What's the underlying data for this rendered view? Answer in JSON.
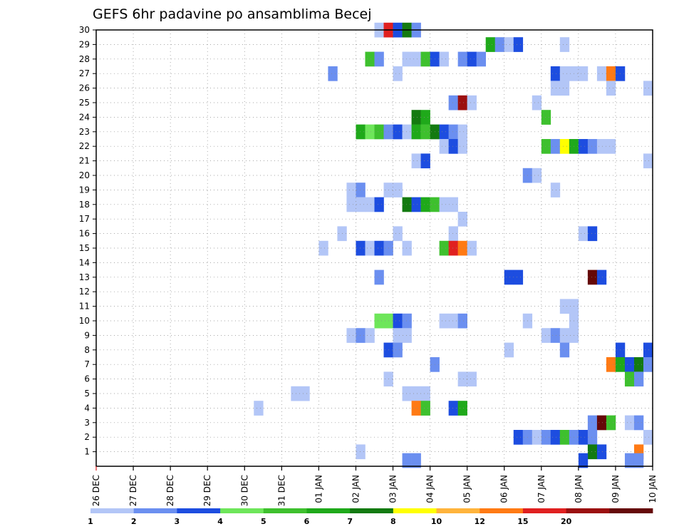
{
  "chart_data": {
    "type": "heatmap",
    "title": "GEFS 6hr padavine po ansamblima Becej",
    "xlabel": "",
    "ylabel": "",
    "y_ticks": [
      "1",
      "2",
      "3",
      "4",
      "5",
      "6",
      "7",
      "8",
      "9",
      "10",
      "11",
      "12",
      "13",
      "14",
      "15",
      "16",
      "17",
      "18",
      "19",
      "20",
      "21",
      "22",
      "23",
      "24",
      "25",
      "26",
      "27",
      "28",
      "29",
      "30"
    ],
    "x_ticks": [
      "26 DEC",
      "27 DEC",
      "28 DEC",
      "29 DEC",
      "30 DEC",
      "31 DEC",
      "01 JAN",
      "02 JAN",
      "03 JAN",
      "04 JAN",
      "05 JAN",
      "06 JAN",
      "07 JAN",
      "08 JAN",
      "09 JAN",
      "10 JAN"
    ],
    "x_unit": "6-hour steps from 26 DEC 00Z",
    "xlim": [
      0,
      60
    ],
    "ylim": [
      0,
      30
    ],
    "grid": true,
    "legend_placement": "bottom",
    "legend": {
      "labels": [
        "1",
        "2",
        "3",
        "4",
        "5",
        "6",
        "7",
        "8",
        "10",
        "12",
        "15",
        "20"
      ],
      "colors": [
        "#b3c6f7",
        "#6b8ff0",
        "#1d4de0",
        "#6ee65a",
        "#3ec02e",
        "#1fa91a",
        "#137a10",
        "#ffff00",
        "#ffb43c",
        "#ff7a14",
        "#e02020",
        "#9b0f0f",
        "#650808"
      ]
    },
    "cells": [
      {
        "m": 30,
        "t": 30.5,
        "c": 0
      },
      {
        "m": 30,
        "t": 31.5,
        "c": 10
      },
      {
        "m": 30,
        "t": 32.5,
        "c": 2
      },
      {
        "m": 30,
        "t": 33.5,
        "c": 6
      },
      {
        "m": 30,
        "t": 34.5,
        "c": 1
      },
      {
        "m": 29,
        "t": 42.5,
        "c": 5
      },
      {
        "m": 29,
        "t": 43.5,
        "c": 1
      },
      {
        "m": 29,
        "t": 44.5,
        "c": 0
      },
      {
        "m": 29,
        "t": 45.5,
        "c": 2
      },
      {
        "m": 29,
        "t": 50.5,
        "c": 0
      },
      {
        "m": 28,
        "t": 29.5,
        "c": 4
      },
      {
        "m": 28,
        "t": 30.5,
        "c": 1
      },
      {
        "m": 28,
        "t": 33.5,
        "c": 0
      },
      {
        "m": 28,
        "t": 34.5,
        "c": 0
      },
      {
        "m": 28,
        "t": 35.5,
        "c": 4
      },
      {
        "m": 28,
        "t": 36.5,
        "c": 2
      },
      {
        "m": 28,
        "t": 37.5,
        "c": 0
      },
      {
        "m": 28,
        "t": 39.5,
        "c": 1
      },
      {
        "m": 28,
        "t": 40.5,
        "c": 2
      },
      {
        "m": 28,
        "t": 41.5,
        "c": 1
      },
      {
        "m": 27,
        "t": 25.5,
        "c": 1
      },
      {
        "m": 27,
        "t": 32.5,
        "c": 0
      },
      {
        "m": 27,
        "t": 49.5,
        "c": 2
      },
      {
        "m": 27,
        "t": 50.5,
        "c": 0
      },
      {
        "m": 27,
        "t": 51.5,
        "c": 0
      },
      {
        "m": 27,
        "t": 52.5,
        "c": 0
      },
      {
        "m": 27,
        "t": 54.5,
        "c": 0
      },
      {
        "m": 27,
        "t": 55.5,
        "c": 9
      },
      {
        "m": 27,
        "t": 56.5,
        "c": 2
      },
      {
        "m": 26,
        "t": 49.5,
        "c": 0
      },
      {
        "m": 26,
        "t": 50.5,
        "c": 0
      },
      {
        "m": 26,
        "t": 55.5,
        "c": 0
      },
      {
        "m": 26,
        "t": 59.5,
        "c": 0
      },
      {
        "m": 25,
        "t": 38.5,
        "c": 1
      },
      {
        "m": 25,
        "t": 39.5,
        "c": 11
      },
      {
        "m": 25,
        "t": 40.5,
        "c": 0
      },
      {
        "m": 25,
        "t": 47.5,
        "c": 0
      },
      {
        "m": 24,
        "t": 34.5,
        "c": 6
      },
      {
        "m": 24,
        "t": 35.5,
        "c": 5
      },
      {
        "m": 24,
        "t": 48.5,
        "c": 4
      },
      {
        "m": 23,
        "t": 28.5,
        "c": 5
      },
      {
        "m": 23,
        "t": 29.5,
        "c": 3
      },
      {
        "m": 23,
        "t": 30.5,
        "c": 4
      },
      {
        "m": 23,
        "t": 31.5,
        "c": 1
      },
      {
        "m": 23,
        "t": 32.5,
        "c": 2
      },
      {
        "m": 23,
        "t": 33.5,
        "c": 0
      },
      {
        "m": 23,
        "t": 34.5,
        "c": 5
      },
      {
        "m": 23,
        "t": 35.5,
        "c": 4
      },
      {
        "m": 23,
        "t": 36.5,
        "c": 6
      },
      {
        "m": 23,
        "t": 37.5,
        "c": 2
      },
      {
        "m": 23,
        "t": 38.5,
        "c": 1
      },
      {
        "m": 23,
        "t": 39.5,
        "c": 0
      },
      {
        "m": 22,
        "t": 37.5,
        "c": 0
      },
      {
        "m": 22,
        "t": 38.5,
        "c": 2
      },
      {
        "m": 22,
        "t": 39.5,
        "c": 0
      },
      {
        "m": 22,
        "t": 48.5,
        "c": 4
      },
      {
        "m": 22,
        "t": 49.5,
        "c": 1
      },
      {
        "m": 22,
        "t": 50.5,
        "c": 7
      },
      {
        "m": 22,
        "t": 51.5,
        "c": 5
      },
      {
        "m": 22,
        "t": 52.5,
        "c": 2
      },
      {
        "m": 22,
        "t": 53.5,
        "c": 1
      },
      {
        "m": 22,
        "t": 54.5,
        "c": 0
      },
      {
        "m": 22,
        "t": 55.5,
        "c": 0
      },
      {
        "m": 21,
        "t": 34.5,
        "c": 0
      },
      {
        "m": 21,
        "t": 35.5,
        "c": 2
      },
      {
        "m": 21,
        "t": 59.5,
        "c": 0
      },
      {
        "m": 20,
        "t": 46.5,
        "c": 1
      },
      {
        "m": 20,
        "t": 47.5,
        "c": 0
      },
      {
        "m": 19,
        "t": 27.5,
        "c": 0
      },
      {
        "m": 19,
        "t": 28.5,
        "c": 1
      },
      {
        "m": 19,
        "t": 31.5,
        "c": 0
      },
      {
        "m": 19,
        "t": 32.5,
        "c": 0
      },
      {
        "m": 19,
        "t": 49.5,
        "c": 0
      },
      {
        "m": 18,
        "t": 27.5,
        "c": 0
      },
      {
        "m": 18,
        "t": 28.5,
        "c": 0
      },
      {
        "m": 18,
        "t": 29.5,
        "c": 0
      },
      {
        "m": 18,
        "t": 30.5,
        "c": 2
      },
      {
        "m": 18,
        "t": 33.5,
        "c": 6
      },
      {
        "m": 18,
        "t": 34.5,
        "c": 2
      },
      {
        "m": 18,
        "t": 35.5,
        "c": 5
      },
      {
        "m": 18,
        "t": 36.5,
        "c": 4
      },
      {
        "m": 18,
        "t": 37.5,
        "c": 0
      },
      {
        "m": 18,
        "t": 38.5,
        "c": 0
      },
      {
        "m": 17,
        "t": 39.5,
        "c": 0
      },
      {
        "m": 16,
        "t": 26.5,
        "c": 0
      },
      {
        "m": 16,
        "t": 32.5,
        "c": 0
      },
      {
        "m": 16,
        "t": 38.5,
        "c": 0
      },
      {
        "m": 16,
        "t": 52.5,
        "c": 0
      },
      {
        "m": 16,
        "t": 53.5,
        "c": 2
      },
      {
        "m": 15,
        "t": 24.5,
        "c": 0
      },
      {
        "m": 15,
        "t": 28.5,
        "c": 2
      },
      {
        "m": 15,
        "t": 29.5,
        "c": 0
      },
      {
        "m": 15,
        "t": 30.5,
        "c": 2
      },
      {
        "m": 15,
        "t": 31.5,
        "c": 1
      },
      {
        "m": 15,
        "t": 33.5,
        "c": 0
      },
      {
        "m": 15,
        "t": 37.5,
        "c": 4
      },
      {
        "m": 15,
        "t": 38.5,
        "c": 10
      },
      {
        "m": 15,
        "t": 39.5,
        "c": 9
      },
      {
        "m": 15,
        "t": 40.5,
        "c": 0
      },
      {
        "m": 13,
        "t": 30.5,
        "c": 1
      },
      {
        "m": 13,
        "t": 44.5,
        "c": 2
      },
      {
        "m": 13,
        "t": 45.5,
        "c": 2
      },
      {
        "m": 13,
        "t": 53.5,
        "c": 12
      },
      {
        "m": 13,
        "t": 54.5,
        "c": 2
      },
      {
        "m": 11,
        "t": 50.5,
        "c": 0
      },
      {
        "m": 11,
        "t": 51.5,
        "c": 0
      },
      {
        "m": 10,
        "t": 30.5,
        "c": 3
      },
      {
        "m": 10,
        "t": 31.5,
        "c": 3
      },
      {
        "m": 10,
        "t": 32.5,
        "c": 2
      },
      {
        "m": 10,
        "t": 33.5,
        "c": 1
      },
      {
        "m": 10,
        "t": 37.5,
        "c": 0
      },
      {
        "m": 10,
        "t": 38.5,
        "c": 0
      },
      {
        "m": 10,
        "t": 39.5,
        "c": 1
      },
      {
        "m": 10,
        "t": 46.5,
        "c": 0
      },
      {
        "m": 10,
        "t": 51.5,
        "c": 0
      },
      {
        "m": 9,
        "t": 27.5,
        "c": 0
      },
      {
        "m": 9,
        "t": 28.5,
        "c": 1
      },
      {
        "m": 9,
        "t": 29.5,
        "c": 0
      },
      {
        "m": 9,
        "t": 32.5,
        "c": 0
      },
      {
        "m": 9,
        "t": 33.5,
        "c": 0
      },
      {
        "m": 9,
        "t": 48.5,
        "c": 0
      },
      {
        "m": 9,
        "t": 49.5,
        "c": 1
      },
      {
        "m": 9,
        "t": 50.5,
        "c": 0
      },
      {
        "m": 9,
        "t": 51.5,
        "c": 0
      },
      {
        "m": 8,
        "t": 31.5,
        "c": 2
      },
      {
        "m": 8,
        "t": 32.5,
        "c": 1
      },
      {
        "m": 8,
        "t": 44.5,
        "c": 0
      },
      {
        "m": 8,
        "t": 50.5,
        "c": 1
      },
      {
        "m": 8,
        "t": 56.5,
        "c": 2
      },
      {
        "m": 8,
        "t": 59.5,
        "c": 2
      },
      {
        "m": 7,
        "t": 36.5,
        "c": 1
      },
      {
        "m": 7,
        "t": 55.5,
        "c": 9
      },
      {
        "m": 7,
        "t": 56.5,
        "c": 5
      },
      {
        "m": 7,
        "t": 57.5,
        "c": 2
      },
      {
        "m": 7,
        "t": 58.5,
        "c": 6
      },
      {
        "m": 7,
        "t": 59.5,
        "c": 1
      },
      {
        "m": 6,
        "t": 31.5,
        "c": 0
      },
      {
        "m": 6,
        "t": 39.5,
        "c": 0
      },
      {
        "m": 6,
        "t": 40.5,
        "c": 0
      },
      {
        "m": 6,
        "t": 57.5,
        "c": 4
      },
      {
        "m": 6,
        "t": 58.5,
        "c": 1
      },
      {
        "m": 5,
        "t": 21.5,
        "c": 0
      },
      {
        "m": 5,
        "t": 22.5,
        "c": 0
      },
      {
        "m": 5,
        "t": 33.5,
        "c": 0
      },
      {
        "m": 5,
        "t": 34.5,
        "c": 0
      },
      {
        "m": 5,
        "t": 35.5,
        "c": 0
      },
      {
        "m": 4,
        "t": 17.5,
        "c": 0
      },
      {
        "m": 4,
        "t": 34.5,
        "c": 9
      },
      {
        "m": 4,
        "t": 35.5,
        "c": 4
      },
      {
        "m": 4,
        "t": 38.5,
        "c": 2
      },
      {
        "m": 4,
        "t": 39.5,
        "c": 5
      },
      {
        "m": 3,
        "t": 53.5,
        "c": 1
      },
      {
        "m": 3,
        "t": 54.5,
        "c": 12
      },
      {
        "m": 3,
        "t": 55.5,
        "c": 4
      },
      {
        "m": 3,
        "t": 57.5,
        "c": 0
      },
      {
        "m": 3,
        "t": 58.5,
        "c": 1
      },
      {
        "m": 2,
        "t": 45.5,
        "c": 2
      },
      {
        "m": 2,
        "t": 46.5,
        "c": 1
      },
      {
        "m": 2,
        "t": 47.5,
        "c": 0
      },
      {
        "m": 2,
        "t": 48.5,
        "c": 1
      },
      {
        "m": 2,
        "t": 49.5,
        "c": 2
      },
      {
        "m": 2,
        "t": 50.5,
        "c": 4
      },
      {
        "m": 2,
        "t": 51.5,
        "c": 1
      },
      {
        "m": 2,
        "t": 52.5,
        "c": 2
      },
      {
        "m": 2,
        "t": 53.5,
        "c": 1
      },
      {
        "m": 2,
        "t": 59.5,
        "c": 0
      },
      {
        "m": 1,
        "t": 28.5,
        "c": 0
      },
      {
        "m": 1,
        "t": 53.5,
        "c": 6
      },
      {
        "m": 1,
        "t": 54.5,
        "c": 2
      },
      {
        "m": 1,
        "t": 58.5,
        "c": 9
      },
      {
        "m": 0.4,
        "t": 33.5,
        "c": 1
      },
      {
        "m": 0.4,
        "t": 34.5,
        "c": 1
      },
      {
        "m": 0.4,
        "t": 52.5,
        "c": 2
      },
      {
        "m": 0.4,
        "t": 57.5,
        "c": 1
      },
      {
        "m": 0.4,
        "t": 58.5,
        "c": 1
      }
    ]
  }
}
